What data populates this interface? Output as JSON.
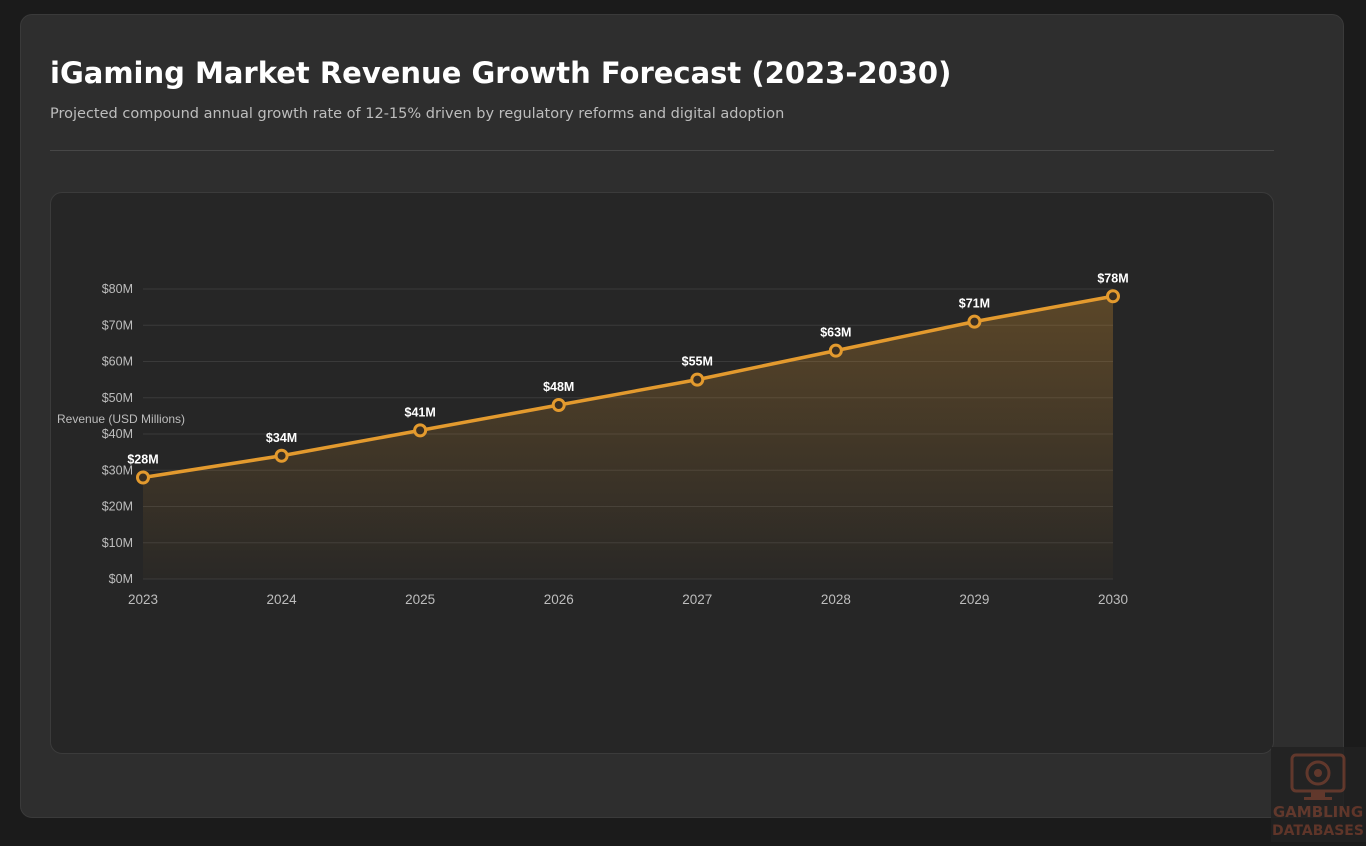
{
  "header": {
    "title": "iGaming Market Revenue Growth Forecast (2023-2030)",
    "subtitle": "Projected compound annual growth rate of 12-15% driven by regulatory reforms and digital adoption"
  },
  "chart_data": {
    "type": "area",
    "title": "",
    "xlabel": "",
    "ylabel": "Revenue (USD Millions)",
    "categories": [
      "2023",
      "2024",
      "2025",
      "2026",
      "2027",
      "2028",
      "2029",
      "2030"
    ],
    "series": [
      {
        "values": [
          28,
          34,
          41,
          48,
          55,
          63,
          71,
          78
        ],
        "data_labels": [
          "$28M",
          "$34M",
          "$41M",
          "$48M",
          "$55M",
          "$63M",
          "$71M",
          "$78M"
        ]
      }
    ],
    "ylim": [
      0,
      80
    ],
    "yticks": [
      0,
      10,
      20,
      30,
      40,
      50,
      60,
      70,
      80
    ],
    "ytick_labels": [
      "$0M",
      "$10M",
      "$20M",
      "$30M",
      "$40M",
      "$50M",
      "$60M",
      "$70M",
      "$80M"
    ],
    "grid": true,
    "legend": "none",
    "colors": {
      "line": "#e39a2e",
      "marker_fill": "#3a2f22",
      "grid": "#3a3a3a",
      "tick_text": "#bdbdbd",
      "data_label_text": "#ffffff"
    }
  },
  "watermark": {
    "line1": "GAMBLING",
    "line2": "DATABASES",
    "icon": "monitor-poker-chip-icon"
  }
}
